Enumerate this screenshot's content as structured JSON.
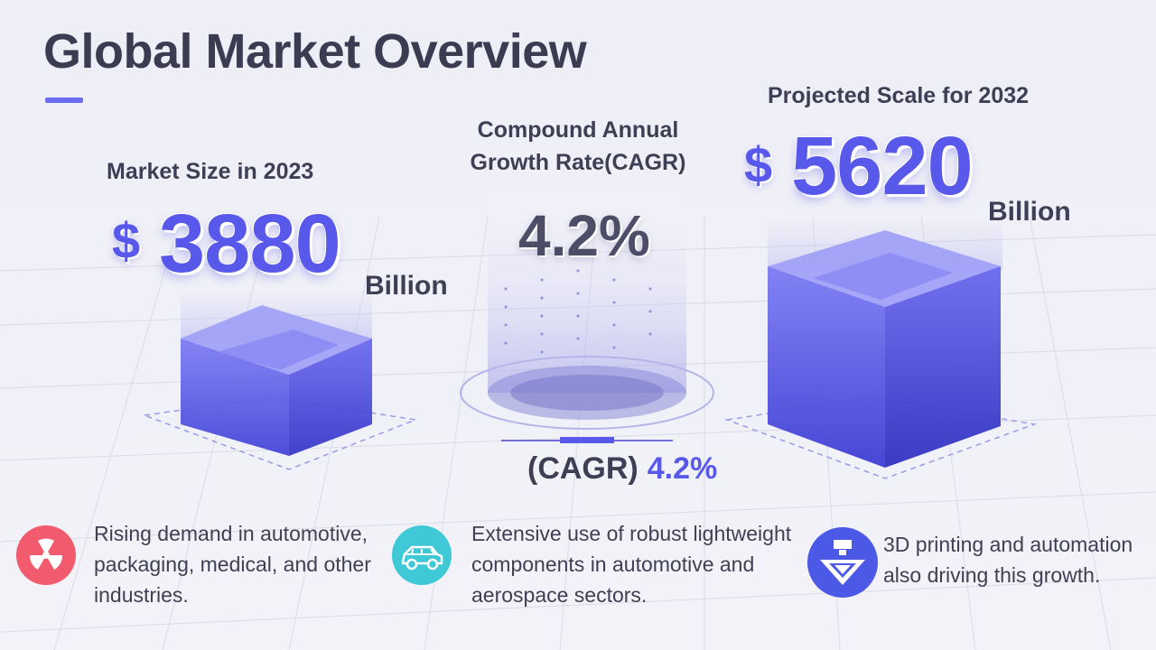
{
  "title": "Global Market Overview",
  "colors": {
    "accent": "#5858ea",
    "text": "#3e3e55",
    "red_icon": "#f25a6e",
    "cyan_icon": "#3fc9d6",
    "blue_icon": "#4b59e6"
  },
  "metrics": {
    "market_2023": {
      "label": "Market Size in 2023",
      "currency": "$",
      "value": "3880",
      "unit": "Billion"
    },
    "cagr": {
      "label_line1": "Compound Annual",
      "label_line2": "Growth Rate(CAGR)",
      "value": "4.2%",
      "footer_label": "(CAGR)",
      "footer_value": "4.2%"
    },
    "projected_2032": {
      "label": "Projected Scale for 2032",
      "currency": "$",
      "value": "5620",
      "unit": "Billion"
    }
  },
  "drivers": [
    {
      "icon": "radiation-icon",
      "lines": [
        "Rising demand in automotive,",
        "packaging, medical, and other",
        "industries."
      ]
    },
    {
      "icon": "car-icon",
      "lines": [
        "Extensive use of robust lightweight",
        "components in automotive and",
        "aerospace sectors."
      ]
    },
    {
      "icon": "3d-printer-icon",
      "lines": [
        "3D printing and automation",
        "also driving this growth."
      ]
    }
  ]
}
